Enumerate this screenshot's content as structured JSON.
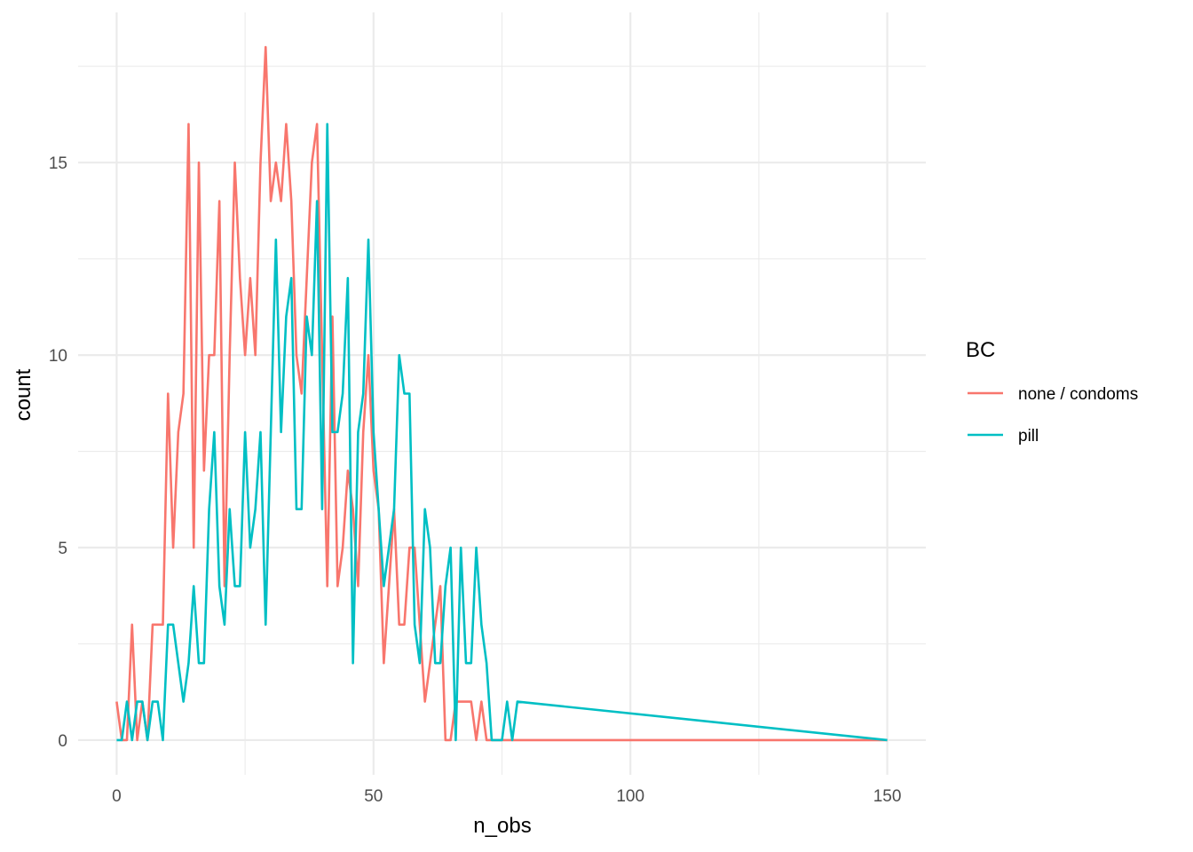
{
  "chart_data": {
    "type": "line",
    "xlabel": "n_obs",
    "ylabel": "count",
    "xlim": [
      -7.5,
      157.5
    ],
    "ylim": [
      -0.9,
      18.9
    ],
    "x_ticks": [
      0,
      50,
      100,
      150
    ],
    "x_tick_labels": [
      "0",
      "50",
      "100",
      "150"
    ],
    "y_ticks": [
      0,
      5,
      10,
      15
    ],
    "y_tick_labels": [
      "0",
      "5",
      "10",
      "15"
    ],
    "grid": true,
    "legend": {
      "title": "BC",
      "placement": "right"
    },
    "series": [
      {
        "name": "none / condoms",
        "color": "#F8766D",
        "x": [
          0,
          1,
          2,
          3,
          4,
          5,
          6,
          7,
          8,
          9,
          10,
          11,
          12,
          13,
          14,
          15,
          16,
          17,
          18,
          19,
          20,
          21,
          22,
          23,
          24,
          25,
          26,
          27,
          28,
          29,
          30,
          31,
          32,
          33,
          34,
          35,
          36,
          37,
          38,
          39,
          40,
          41,
          42,
          43,
          44,
          45,
          46,
          47,
          48,
          49,
          50,
          51,
          52,
          53,
          54,
          55,
          56,
          57,
          58,
          59,
          60,
          61,
          62,
          63,
          64,
          65,
          66,
          67,
          68,
          69,
          70,
          71,
          72,
          73,
          74,
          75,
          76,
          77,
          78,
          150
        ],
        "values": [
          1,
          0,
          0,
          3,
          0,
          1,
          0,
          3,
          3,
          3,
          9,
          5,
          8,
          9,
          16,
          5,
          15,
          7,
          10,
          10,
          14,
          4,
          10,
          15,
          12,
          10,
          12,
          10,
          15,
          18,
          14,
          15,
          14,
          16,
          14,
          10,
          9,
          12,
          15,
          16,
          10,
          4,
          11,
          4,
          5,
          7,
          6,
          4,
          8,
          10,
          7,
          6,
          2,
          4,
          6,
          3,
          3,
          5,
          5,
          3,
          1,
          2,
          3,
          4,
          0,
          0,
          1,
          1,
          1,
          1,
          0,
          1,
          0,
          0,
          0,
          0,
          0,
          0,
          0,
          0
        ]
      },
      {
        "name": "pill",
        "color": "#00BFC4",
        "x": [
          0,
          1,
          2,
          3,
          4,
          5,
          6,
          7,
          8,
          9,
          10,
          11,
          12,
          13,
          14,
          15,
          16,
          17,
          18,
          19,
          20,
          21,
          22,
          23,
          24,
          25,
          26,
          27,
          28,
          29,
          30,
          31,
          32,
          33,
          34,
          35,
          36,
          37,
          38,
          39,
          40,
          41,
          42,
          43,
          44,
          45,
          46,
          47,
          48,
          49,
          50,
          51,
          52,
          53,
          54,
          55,
          56,
          57,
          58,
          59,
          60,
          61,
          62,
          63,
          64,
          65,
          66,
          67,
          68,
          69,
          70,
          71,
          72,
          73,
          74,
          75,
          76,
          77,
          78,
          150
        ],
        "values": [
          0,
          0,
          1,
          0,
          1,
          1,
          0,
          1,
          1,
          0,
          3,
          3,
          2,
          1,
          2,
          4,
          2,
          2,
          6,
          8,
          4,
          3,
          6,
          4,
          4,
          8,
          5,
          6,
          8,
          3,
          8,
          13,
          8,
          11,
          12,
          6,
          6,
          11,
          10,
          14,
          6,
          16,
          8,
          8,
          9,
          12,
          2,
          8,
          9,
          13,
          8,
          6,
          4,
          5,
          6,
          10,
          9,
          9,
          3,
          2,
          6,
          5,
          2,
          2,
          4,
          5,
          0,
          5,
          2,
          2,
          5,
          3,
          2,
          0,
          0,
          0,
          1,
          0,
          1,
          0
        ]
      }
    ]
  }
}
